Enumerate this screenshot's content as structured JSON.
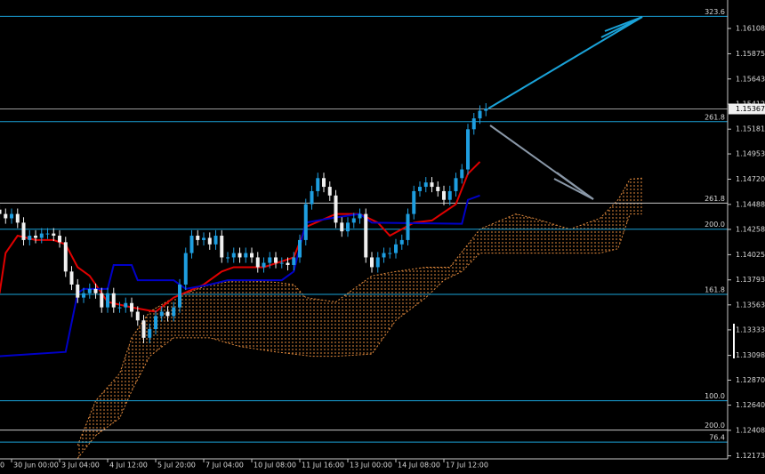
{
  "chart_data": {
    "type": "candlestick",
    "xlim": [
      0.07,
      121.26
    ],
    "ylim": [
      1.12145,
      1.1637
    ],
    "yticks": [
      1.16108,
      1.15875,
      1.15643,
      1.15412,
      1.15181,
      1.14953,
      {
        "value": 1.1472,
        "label": "1.14720"
      },
      1.14488,
      1.14258,
      1.14025,
      1.13793,
      1.13563,
      1.13333,
      1.13098,
      {
        "value": 1.1287,
        "label": "1.12870"
      },
      {
        "value": 1.1264,
        "label": "1.12640"
      },
      1.12408,
      1.12173
    ],
    "xticks": [
      {
        "value": -6,
        "label": "0"
      },
      {
        "value": 2,
        "label": "30 Jun 00:00"
      },
      {
        "value": 10,
        "label": "3 Jul 04:00"
      },
      {
        "value": 18,
        "label": "4 Jul 12:00"
      },
      {
        "value": 26,
        "label": "5 Jul 20:00"
      },
      {
        "value": 34,
        "label": "7 Jul 04:00"
      },
      {
        "value": 42,
        "label": "10 Jul 08:00"
      },
      {
        "value": 50,
        "label": "11 Jul 16:00"
      },
      {
        "value": 58,
        "label": "13 Jul 00:00"
      },
      {
        "value": 66,
        "label": "14 Jul 08:00"
      },
      {
        "value": 74,
        "label": "17 Jul 12:00"
      }
    ],
    "candles": {
      "up_color": "#1e9ee0",
      "down_color": "#f0f0f0",
      "open": [
        1.1444,
        1.144,
        1.1436,
        1.144,
        1.1432,
        1.1416,
        1.142,
        1.1418,
        1.1422,
        1.1422,
        1.142,
        1.1414,
        1.1387,
        1.1375,
        1.1363,
        1.1367,
        1.1371,
        1.1367,
        1.1354,
        1.1367,
        1.1354,
        1.1354,
        1.1358,
        1.135,
        1.1342,
        1.1326,
        1.1334,
        1.1346,
        1.135,
        1.1346,
        1.1354,
        1.1375,
        1.1404,
        1.142,
        1.1416,
        1.1418,
        1.1412,
        1.142,
        1.14,
        1.14,
        1.1404,
        1.14,
        1.1404,
        1.14,
        1.1391,
        1.1395,
        1.14,
        1.1395,
        1.1395,
        1.1393,
        1.14,
        1.1416,
        1.1449,
        1.1461,
        1.1473,
        1.1465,
        1.1457,
        1.1432,
        1.1424,
        1.1432,
        1.1436,
        1.144,
        1.14,
        1.1391,
        1.14,
        1.1404,
        1.1404,
        1.1412,
        1.1416,
        1.144,
        1.1461,
        1.1465,
        1.1469,
        1.1465,
        1.1461,
        1.1453,
        1.1461,
        1.1473,
        1.1481,
        1.1518,
        1.1528,
        1.1535
      ],
      "high": [
        1.1449,
        1.1445,
        1.1445,
        1.1445,
        1.1437,
        1.1425,
        1.1425,
        1.1427,
        1.1427,
        1.1427,
        1.1425,
        1.1419,
        1.1392,
        1.138,
        1.1372,
        1.1376,
        1.1376,
        1.1372,
        1.1372,
        1.1372,
        1.1359,
        1.1363,
        1.1363,
        1.1355,
        1.1347,
        1.1339,
        1.1351,
        1.1355,
        1.1355,
        1.1359,
        1.138,
        1.1409,
        1.1425,
        1.1425,
        1.1423,
        1.1423,
        1.1425,
        1.1425,
        1.1405,
        1.1409,
        1.1409,
        1.1409,
        1.1409,
        1.1405,
        1.14,
        1.1405,
        1.1405,
        1.14,
        1.14,
        1.1405,
        1.1421,
        1.1454,
        1.1466,
        1.1478,
        1.1478,
        1.147,
        1.1462,
        1.1437,
        1.1437,
        1.1441,
        1.1445,
        1.1445,
        1.1405,
        1.1405,
        1.1409,
        1.1409,
        1.1417,
        1.1421,
        1.1445,
        1.1466,
        1.147,
        1.1474,
        1.1474,
        1.147,
        1.1466,
        1.1466,
        1.1478,
        1.1486,
        1.1523,
        1.1533,
        1.154,
        1.1542
      ],
      "low": [
        1.1435,
        1.1431,
        1.1431,
        1.1427,
        1.1411,
        1.1411,
        1.1413,
        1.1413,
        1.1417,
        1.1415,
        1.1409,
        1.1382,
        1.137,
        1.1358,
        1.1358,
        1.1362,
        1.1362,
        1.1349,
        1.1349,
        1.1349,
        1.1349,
        1.1349,
        1.1345,
        1.1337,
        1.1321,
        1.1321,
        1.1329,
        1.1341,
        1.1341,
        1.1341,
        1.1349,
        1.137,
        1.1399,
        1.1411,
        1.1411,
        1.1407,
        1.1407,
        1.1395,
        1.1395,
        1.1395,
        1.1395,
        1.1395,
        1.1395,
        1.1386,
        1.1386,
        1.139,
        1.139,
        1.139,
        1.1388,
        1.1388,
        1.1395,
        1.1411,
        1.1444,
        1.1456,
        1.146,
        1.1452,
        1.1427,
        1.1419,
        1.1419,
        1.1427,
        1.1431,
        1.1395,
        1.1386,
        1.1386,
        1.1395,
        1.1399,
        1.1399,
        1.1407,
        1.1411,
        1.1435,
        1.1456,
        1.146,
        1.146,
        1.1456,
        1.1448,
        1.1448,
        1.1456,
        1.1468,
        1.1476,
        1.1513,
        1.1523,
        1.153
      ],
      "close": [
        1.144,
        1.1436,
        1.144,
        1.1432,
        1.1416,
        1.142,
        1.1418,
        1.1422,
        1.1422,
        1.142,
        1.1414,
        1.1387,
        1.1375,
        1.1363,
        1.1367,
        1.1371,
        1.1367,
        1.1354,
        1.1367,
        1.1354,
        1.1354,
        1.1358,
        1.135,
        1.1342,
        1.1326,
        1.1334,
        1.1346,
        1.135,
        1.1346,
        1.1354,
        1.1375,
        1.1404,
        1.142,
        1.1416,
        1.1418,
        1.1412,
        1.142,
        1.14,
        1.14,
        1.1404,
        1.14,
        1.1404,
        1.14,
        1.1391,
        1.1395,
        1.14,
        1.1395,
        1.1395,
        1.1393,
        1.14,
        1.1416,
        1.1449,
        1.1461,
        1.1473,
        1.1465,
        1.1457,
        1.1432,
        1.1424,
        1.1432,
        1.1436,
        1.144,
        1.14,
        1.1391,
        1.14,
        1.1404,
        1.1404,
        1.1412,
        1.1416,
        1.144,
        1.1461,
        1.1465,
        1.1469,
        1.1465,
        1.1461,
        1.1453,
        1.1461,
        1.1473,
        1.1481,
        1.1518,
        1.1528,
        1.1535,
        1.1537
      ]
    },
    "series": [
      {
        "color": "#e00000",
        "x": [
          0,
          1,
          3,
          6,
          9,
          11,
          13,
          15,
          18,
          22,
          26,
          29,
          34,
          37,
          39,
          44,
          49,
          51,
          56,
          60,
          63,
          65,
          69,
          72,
          76,
          78,
          80
        ],
        "values": [
          1.1367,
          1.1404,
          1.142,
          1.1416,
          1.1416,
          1.1412,
          1.1391,
          1.1383,
          1.1359,
          1.1354,
          1.135,
          1.1363,
          1.1375,
          1.1387,
          1.1391,
          1.1391,
          1.14,
          1.1428,
          1.144,
          1.144,
          1.1432,
          1.142,
          1.1432,
          1.1434,
          1.1449,
          1.1477,
          1.1488
        ]
      },
      {
        "color": "#0000c8",
        "x": [
          0,
          11,
          13,
          14,
          18,
          19,
          22,
          23,
          29,
          31,
          35,
          38,
          47,
          49,
          51,
          55,
          60,
          62,
          77,
          78,
          80
        ],
        "values": [
          1.1309,
          1.1313,
          1.1367,
          1.1371,
          1.1371,
          1.1393,
          1.1393,
          1.1379,
          1.1379,
          1.1371,
          1.1375,
          1.1379,
          1.1379,
          1.1387,
          1.1432,
          1.1436,
          1.144,
          1.1432,
          1.1431,
          1.1453,
          1.1457
        ]
      }
    ],
    "cloud": {
      "color": "#e0893c",
      "upper": {
        "x": [
          13,
          16,
          20,
          22,
          25,
          29,
          35,
          40,
          46,
          49,
          51,
          56,
          62,
          66,
          71,
          75,
          78,
          80,
          86,
          89,
          95,
          100,
          103,
          105,
          107
        ],
        "values": [
          1.1227,
          1.1268,
          1.1293,
          1.1326,
          1.135,
          1.1363,
          1.1375,
          1.1379,
          1.1377,
          1.1375,
          1.1363,
          1.1359,
          1.1383,
          1.1387,
          1.1391,
          1.1391,
          1.1412,
          1.1426,
          1.144,
          1.1436,
          1.1426,
          1.1436,
          1.1453,
          1.1472,
          1.1473
        ]
      },
      "lower": {
        "x": [
          13,
          16,
          20,
          22,
          25,
          29,
          35,
          40,
          46,
          52,
          56,
          62,
          66,
          71,
          74,
          77,
          80,
          86,
          95,
          100,
          103,
          105,
          107
        ],
        "values": [
          1.1215,
          1.1236,
          1.1252,
          1.1277,
          1.1309,
          1.1326,
          1.1326,
          1.1318,
          1.1313,
          1.1309,
          1.1309,
          1.1311,
          1.1342,
          1.1363,
          1.1379,
          1.1387,
          1.1404,
          1.1404,
          1.1404,
          1.1404,
          1.1408,
          1.144,
          1.144
        ]
      }
    },
    "levels": [
      {
        "label": "323.6",
        "value": 1.1622,
        "color": "#1aa3d9"
      },
      {
        "label": "261.8",
        "value": 1.1525,
        "color": "#1aa3d9"
      },
      {
        "label": "261.8",
        "value": 1.145,
        "color": "#c8c8c8"
      },
      {
        "label": "200.0",
        "value": 1.1426,
        "color": "#1aa3d9"
      },
      {
        "label": "161.8",
        "value": 1.1366,
        "color": "#1aa3d9"
      },
      {
        "label": "100.0",
        "value": 1.1268,
        "color": "#1aa3d9"
      },
      {
        "label": "200.0",
        "value": 1.1241,
        "color": "#c8c8c8"
      },
      {
        "label": "76.4",
        "value": 1.123,
        "color": "#1aa3d9"
      }
    ],
    "current_price": 1.15367
  }
}
